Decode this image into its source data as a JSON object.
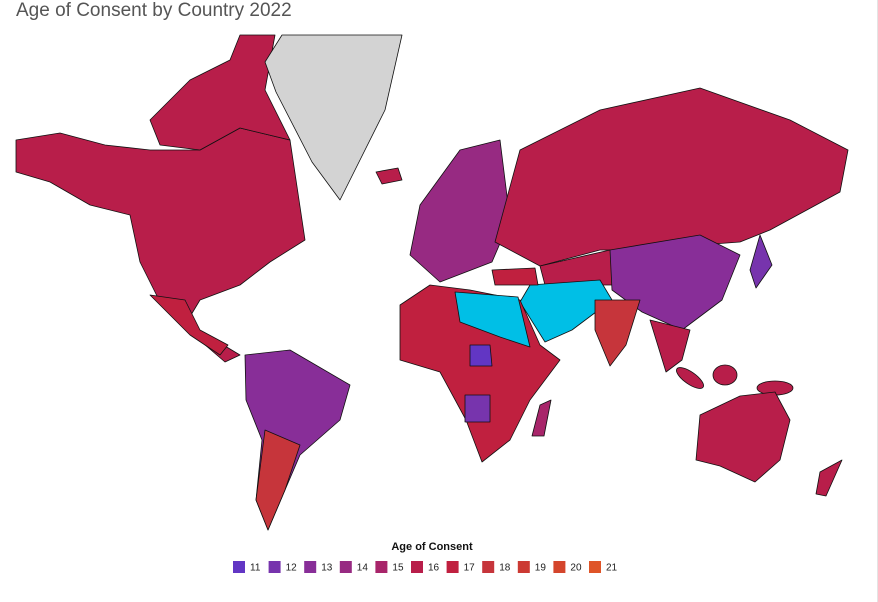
{
  "title": "Age of Consent by Country 2022",
  "legend": {
    "title": "Age of Consent",
    "items": [
      {
        "label": "11",
        "color": "#6236c4"
      },
      {
        "label": "12",
        "color": "#7734ad"
      },
      {
        "label": "13",
        "color": "#882e98"
      },
      {
        "label": "14",
        "color": "#972a82"
      },
      {
        "label": "15",
        "color": "#a8256a"
      },
      {
        "label": "16",
        "color": "#b81e4a"
      },
      {
        "label": "17",
        "color": "#c0203f"
      },
      {
        "label": "18",
        "color": "#c6353b"
      },
      {
        "label": "19",
        "color": "#cc3a33"
      },
      {
        "label": "20",
        "color": "#d4452c"
      },
      {
        "label": "21",
        "color": "#df5428"
      }
    ]
  }
}
